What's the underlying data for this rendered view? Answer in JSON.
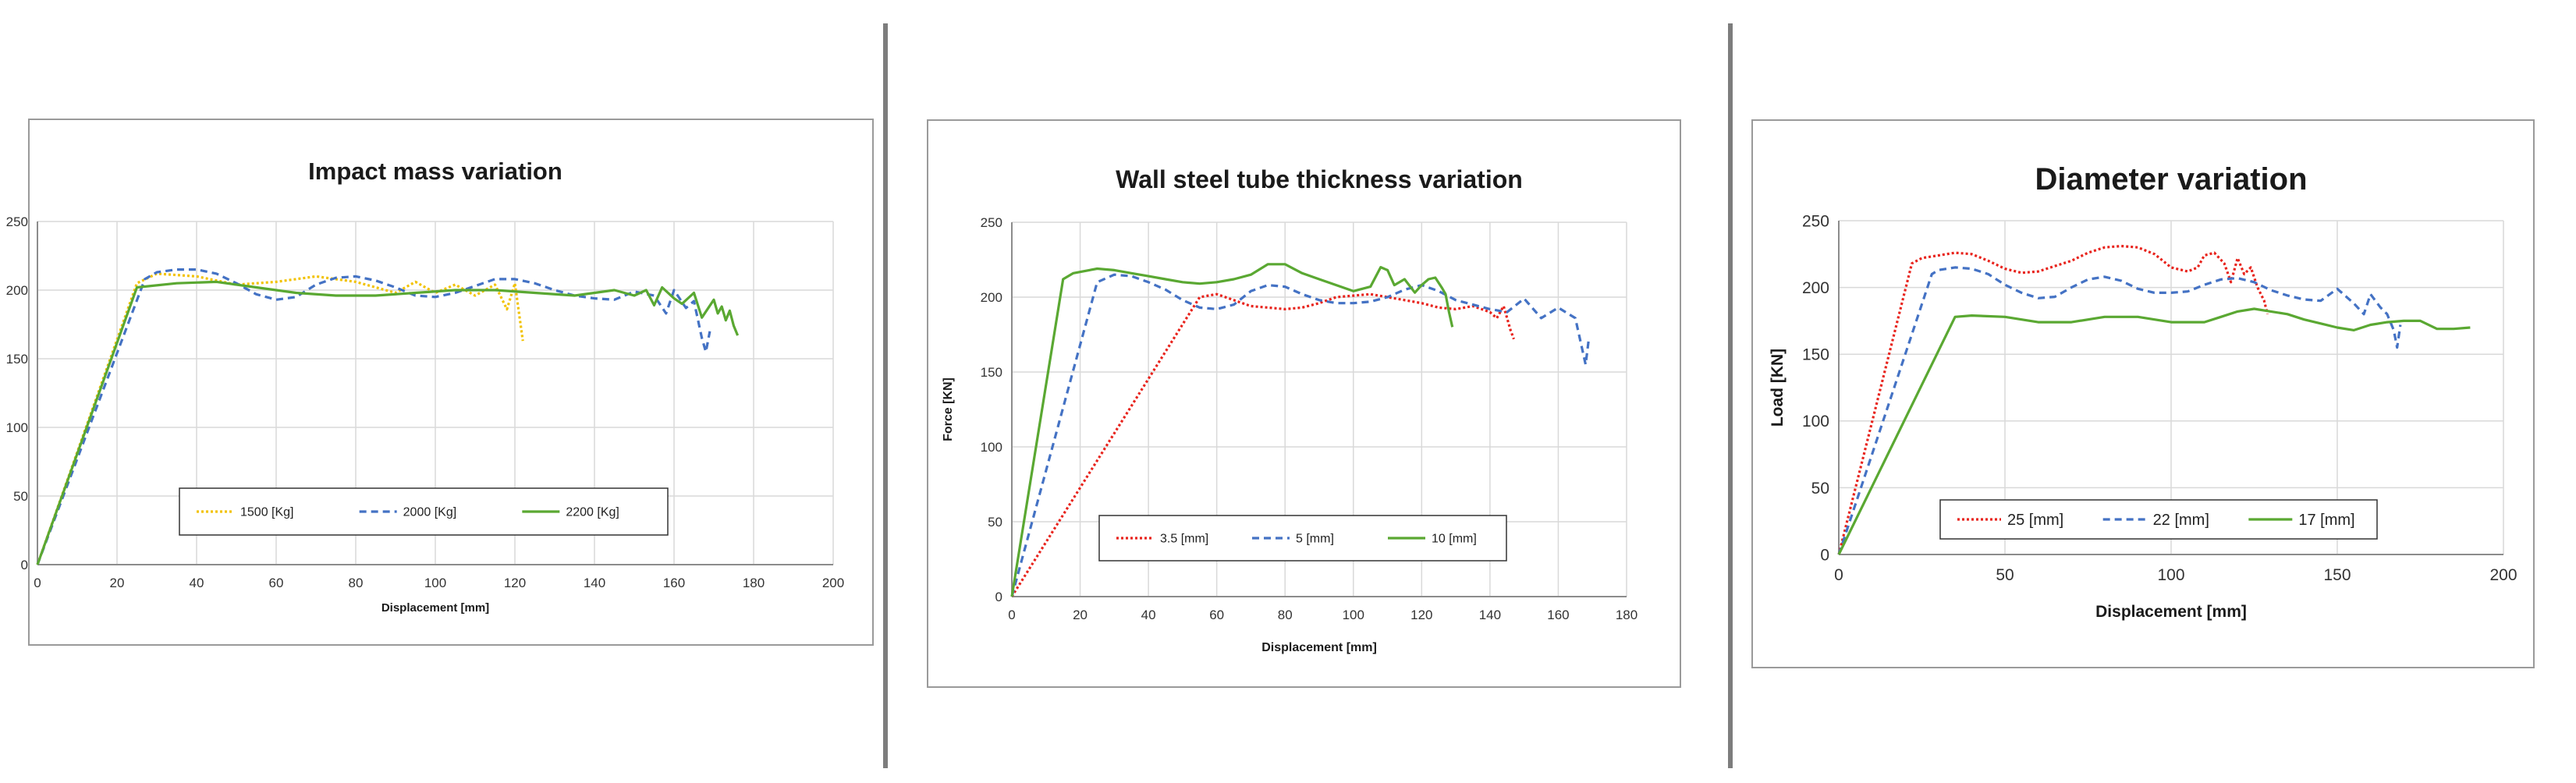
{
  "chart_data": [
    {
      "type": "line",
      "title": "Impact mass variation",
      "xlabel": "Displacement [mm]",
      "ylabel": "",
      "xlim": [
        0,
        200
      ],
      "ylim": [
        0,
        250
      ],
      "xticks": [
        0,
        20,
        40,
        60,
        80,
        100,
        120,
        140,
        160,
        180,
        200
      ],
      "yticks": [
        0,
        50,
        100,
        150,
        200,
        250
      ],
      "grid": true,
      "legend": "bottom-center",
      "series": [
        {
          "name": "1500  [Kg]",
          "color": "#f2c200",
          "dash": "dotted",
          "x": [
            0,
            25,
            30,
            40,
            50,
            60,
            70,
            80,
            90,
            95,
            100,
            105,
            110,
            115,
            118,
            120,
            122
          ],
          "y": [
            0,
            205,
            212,
            210,
            204,
            206,
            210,
            206,
            198,
            206,
            198,
            204,
            196,
            204,
            186,
            205,
            163
          ]
        },
        {
          "name": "2000  [Kg]",
          "color": "#4472c4",
          "dash": "dashed",
          "x": [
            0,
            27,
            30,
            35,
            40,
            45,
            50,
            55,
            60,
            65,
            70,
            75,
            80,
            85,
            90,
            95,
            100,
            105,
            110,
            115,
            120,
            125,
            130,
            135,
            140,
            145,
            150,
            155,
            158,
            160,
            163,
            165,
            167,
            168,
            169
          ],
          "y": [
            0,
            208,
            213,
            215,
            215,
            212,
            205,
            197,
            193,
            195,
            204,
            209,
            210,
            207,
            202,
            196,
            195,
            198,
            203,
            208,
            208,
            205,
            200,
            196,
            194,
            193,
            199,
            196,
            183,
            200,
            187,
            192,
            165,
            155,
            170
          ]
        },
        {
          "name": "2200  [Kg]",
          "color": "#5aa832",
          "dash": "solid",
          "x": [
            0,
            25,
            35,
            45,
            55,
            65,
            75,
            85,
            95,
            105,
            115,
            125,
            135,
            140,
            145,
            150,
            153,
            155,
            157,
            160,
            162,
            165,
            167,
            170,
            171,
            172,
            173,
            174,
            175,
            176
          ],
          "y": [
            0,
            202,
            205,
            206,
            202,
            198,
            196,
            196,
            198,
            200,
            200,
            198,
            196,
            198,
            200,
            196,
            200,
            189,
            202,
            194,
            190,
            198,
            180,
            193,
            183,
            188,
            178,
            185,
            174,
            167
          ]
        }
      ]
    },
    {
      "type": "line",
      "title": "Wall steel tube thickness variation",
      "xlabel": "Displacement [mm]",
      "ylabel": "Force  [KN]",
      "xlim": [
        0,
        180
      ],
      "ylim": [
        0,
        250
      ],
      "xticks": [
        0,
        20,
        40,
        60,
        80,
        100,
        120,
        140,
        160,
        180
      ],
      "yticks": [
        0,
        50,
        100,
        150,
        200,
        250
      ],
      "grid": true,
      "legend": "bottom-center",
      "series": [
        {
          "name": "3.5  [mm]",
          "color": "#e8231c",
          "dash": "dotted",
          "x": [
            0,
            55,
            60,
            65,
            70,
            75,
            80,
            85,
            90,
            95,
            100,
            105,
            110,
            115,
            120,
            125,
            130,
            135,
            140,
            142,
            144,
            146,
            147
          ],
          "y": [
            0,
            200,
            202,
            198,
            194,
            193,
            192,
            193,
            196,
            200,
            201,
            202,
            200,
            198,
            196,
            193,
            192,
            194,
            190,
            186,
            194,
            178,
            172
          ]
        },
        {
          "name": "5 [mm]",
          "color": "#4472c4",
          "dash": "dashed",
          "x": [
            0,
            25,
            30,
            35,
            40,
            45,
            50,
            55,
            60,
            65,
            70,
            75,
            80,
            85,
            90,
            95,
            100,
            105,
            110,
            115,
            120,
            125,
            130,
            135,
            140,
            145,
            150,
            155,
            160,
            165,
            168,
            169
          ],
          "y": [
            0,
            210,
            215,
            214,
            210,
            205,
            198,
            193,
            192,
            195,
            204,
            208,
            207,
            202,
            198,
            196,
            196,
            197,
            200,
            205,
            208,
            204,
            198,
            195,
            192,
            190,
            199,
            186,
            193,
            186,
            155,
            173
          ]
        },
        {
          "name": "10 [mm]",
          "color": "#5aa832",
          "dash": "solid",
          "x": [
            0,
            15,
            18,
            25,
            30,
            35,
            40,
            45,
            50,
            55,
            60,
            65,
            70,
            75,
            80,
            85,
            90,
            95,
            100,
            105,
            108,
            110,
            112,
            115,
            118,
            120,
            122,
            124,
            126,
            127,
            128,
            129
          ],
          "y": [
            0,
            212,
            216,
            219,
            218,
            216,
            214,
            212,
            210,
            209,
            210,
            212,
            215,
            222,
            222,
            216,
            212,
            208,
            204,
            207,
            220,
            218,
            208,
            212,
            203,
            208,
            212,
            213,
            206,
            202,
            190,
            180
          ]
        }
      ]
    },
    {
      "type": "line",
      "title": "Diameter variation",
      "xlabel": "Displacement [mm]",
      "ylabel": "Load [KN]",
      "xlim": [
        0,
        200
      ],
      "ylim": [
        0,
        250
      ],
      "xticks": [
        0,
        50,
        100,
        150,
        200
      ],
      "yticks": [
        0,
        50,
        100,
        150,
        200,
        250
      ],
      "grid": true,
      "legend": "bottom-center",
      "series": [
        {
          "name": "25 [mm]",
          "color": "#e8231c",
          "dash": "dotted",
          "x": [
            0,
            22,
            25,
            30,
            35,
            40,
            45,
            50,
            55,
            60,
            65,
            70,
            75,
            80,
            85,
            90,
            95,
            100,
            105,
            108,
            110,
            113,
            116,
            118,
            120,
            122,
            124,
            126,
            128,
            129
          ],
          "y": [
            0,
            218,
            222,
            224,
            226,
            225,
            220,
            214,
            211,
            212,
            216,
            220,
            226,
            230,
            231,
            230,
            225,
            215,
            212,
            215,
            224,
            226,
            218,
            204,
            222,
            210,
            215,
            200,
            190,
            180
          ]
        },
        {
          "name": "22 [mm]",
          "color": "#4472c4",
          "dash": "dashed",
          "x": [
            0,
            28,
            30,
            35,
            40,
            45,
            50,
            55,
            60,
            65,
            70,
            75,
            80,
            85,
            90,
            95,
            100,
            105,
            110,
            115,
            120,
            125,
            130,
            135,
            140,
            145,
            150,
            155,
            158,
            160,
            163,
            165,
            167,
            168,
            169
          ],
          "y": [
            0,
            210,
            213,
            215,
            214,
            210,
            202,
            196,
            192,
            193,
            200,
            206,
            208,
            205,
            199,
            196,
            196,
            197,
            202,
            206,
            207,
            204,
            198,
            194,
            191,
            190,
            199,
            188,
            180,
            195,
            185,
            180,
            168,
            155,
            172
          ]
        },
        {
          "name": "17 [mm]",
          "color": "#5aa832",
          "dash": "solid",
          "x": [
            0,
            35,
            40,
            50,
            60,
            70,
            80,
            90,
            100,
            110,
            115,
            120,
            125,
            130,
            135,
            140,
            145,
            150,
            155,
            160,
            165,
            170,
            175,
            180,
            185,
            190
          ],
          "y": [
            0,
            178,
            179,
            178,
            174,
            174,
            178,
            178,
            174,
            174,
            178,
            182,
            184,
            182,
            180,
            176,
            173,
            170,
            168,
            172,
            174,
            175,
            175,
            169,
            169,
            170
          ]
        }
      ]
    }
  ]
}
